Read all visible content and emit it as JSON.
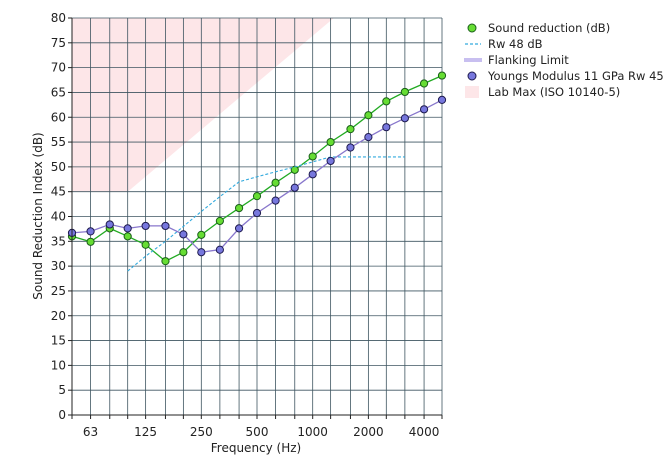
{
  "chart_data": {
    "type": "line",
    "xlabel": "Frequency (Hz)",
    "ylabel": "Sound Reduction Index (dB)",
    "xscale": "log",
    "xlim": [
      50,
      5000
    ],
    "ylim": [
      0,
      80
    ],
    "grid": true,
    "legend_position": "right",
    "x_tick_labels": [
      "63",
      "125",
      "250",
      "500",
      "1000",
      "2000",
      "4000"
    ],
    "y_tick_labels": [
      "0",
      "5",
      "10",
      "15",
      "20",
      "25",
      "30",
      "35",
      "40",
      "45",
      "50",
      "55",
      "60",
      "65",
      "70",
      "75",
      "80"
    ],
    "series": [
      {
        "name": "Sound reduction (dB)",
        "style": "line-markers",
        "color": "#22aa22",
        "marker_color": "#66dd33",
        "x": [
          50,
          63,
          80,
          100,
          125,
          160,
          200,
          250,
          315,
          400,
          500,
          630,
          800,
          1000,
          1250,
          1600,
          2000,
          2500,
          3150,
          4000,
          5000
        ],
        "y": [
          36.0,
          34.9,
          37.6,
          36.0,
          34.3,
          31.0,
          32.8,
          36.3,
          39.1,
          41.7,
          44.1,
          46.8,
          49.4,
          52.1,
          55.0,
          57.6,
          60.4,
          63.2,
          65.1,
          66.8,
          68.4
        ]
      },
      {
        "name": "Rw 48 dB",
        "style": "dashed",
        "color": "#33aadd",
        "x": [
          100,
          125,
          160,
          200,
          250,
          315,
          400,
          500,
          630,
          800,
          1000,
          1250,
          1600,
          2000,
          2500,
          3150
        ],
        "y": [
          29,
          32,
          35,
          38,
          41,
          44,
          47,
          48,
          49,
          50,
          51,
          52,
          52,
          52,
          52,
          52
        ]
      },
      {
        "name": "Flanking Limit",
        "style": "line",
        "color": "#c8bff0",
        "x": [],
        "y": []
      },
      {
        "name": "Youngs Modulus 11 GPa Rw 45",
        "style": "line-markers",
        "color": "#8877cc",
        "marker_color": "#7777dd",
        "x": [
          50,
          63,
          80,
          100,
          125,
          160,
          200,
          250,
          315,
          400,
          500,
          630,
          800,
          1000,
          1250,
          1600,
          2000,
          2500,
          3150,
          4000,
          5000
        ],
        "y": [
          36.7,
          37.0,
          38.4,
          37.6,
          38.1,
          38.1,
          36.4,
          32.8,
          33.3,
          37.6,
          40.7,
          43.2,
          45.8,
          48.5,
          51.2,
          53.9,
          56.0,
          58.0,
          59.8,
          61.6,
          63.5
        ]
      },
      {
        "name": "Lab Max (ISO 10140-5)",
        "style": "area",
        "color": "#fde6e8",
        "x": [
          50,
          100,
          1300
        ],
        "y": [
          45,
          45,
          80
        ]
      }
    ]
  }
}
